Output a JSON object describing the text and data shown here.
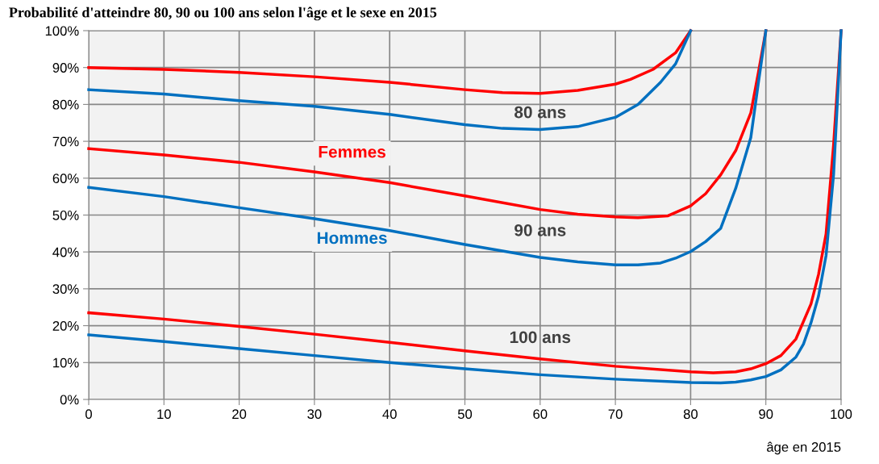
{
  "chart_data": {
    "type": "line",
    "title": "Probabilité d'atteindre 80, 90 ou 100 ans selon l'âge et le sexe en 2015",
    "xlabel": "âge en 2015",
    "xlim": [
      0,
      100
    ],
    "xticks": [
      0,
      10,
      20,
      30,
      40,
      50,
      60,
      70,
      80,
      90,
      100
    ],
    "ylim": [
      0,
      100
    ],
    "yticks": [
      {
        "value": 0,
        "label": "0%"
      },
      {
        "value": 10,
        "label": "10%"
      },
      {
        "value": 20,
        "label": "20%"
      },
      {
        "value": 30,
        "label": "30%"
      },
      {
        "value": 40,
        "label": "40%"
      },
      {
        "value": 50,
        "label": "50%"
      },
      {
        "value": 60,
        "label": "60%"
      },
      {
        "value": 70,
        "label": "70%"
      },
      {
        "value": 80,
        "label": "80%"
      },
      {
        "value": 90,
        "label": "90%"
      },
      {
        "value": 100,
        "label": "100%"
      }
    ],
    "grid": true,
    "legend": false,
    "marker": "none",
    "line_style": "solid",
    "series": [
      {
        "color": "#ff0000",
        "x": [
          0,
          10,
          20,
          30,
          40,
          50,
          55,
          60,
          65,
          70,
          72,
          75,
          78,
          80
        ],
        "values": [
          90,
          89.5,
          88.7,
          87.5,
          86,
          84,
          83.2,
          83,
          83.8,
          85.5,
          86.8,
          89.5,
          94,
          100
        ]
      },
      {
        "color": "#0070c0",
        "x": [
          0,
          10,
          20,
          30,
          40,
          50,
          55,
          60,
          65,
          70,
          73,
          76,
          78,
          80
        ],
        "values": [
          84,
          82.8,
          81,
          79.5,
          77.3,
          74.5,
          73.5,
          73.2,
          74,
          76.5,
          80,
          86,
          91,
          100
        ]
      },
      {
        "name": "Femmes",
        "color": "#ff0000",
        "x": [
          0,
          10,
          20,
          30,
          40,
          50,
          60,
          65,
          70,
          73,
          77,
          80,
          82,
          84,
          86,
          88,
          89,
          90
        ],
        "values": [
          68,
          66.3,
          64.3,
          61.7,
          58.8,
          55.2,
          51.5,
          50.2,
          49.5,
          49.3,
          49.8,
          52.5,
          55.8,
          60.9,
          67.5,
          77.7,
          88.6,
          100
        ]
      },
      {
        "name": "Hommes",
        "color": "#0070c0",
        "x": [
          0,
          10,
          20,
          30,
          40,
          50,
          60,
          65,
          70,
          73,
          76,
          78,
          80,
          82,
          84,
          86,
          88,
          89,
          90
        ],
        "values": [
          57.5,
          55,
          52,
          49,
          45.8,
          42,
          38.5,
          37.3,
          36.5,
          36.5,
          37,
          38.3,
          40.1,
          42.8,
          46.4,
          57.3,
          71,
          85.8,
          100
        ]
      },
      {
        "color": "#ff0000",
        "x": [
          0,
          10,
          20,
          30,
          40,
          50,
          60,
          70,
          80,
          83,
          86,
          88,
          90,
          92,
          94,
          96,
          97,
          98,
          99,
          100
        ],
        "values": [
          23.5,
          21.8,
          19.8,
          17.7,
          15.5,
          13.2,
          11,
          9,
          7.5,
          7.2,
          7.5,
          8.3,
          9.7,
          11.9,
          16.4,
          25.9,
          33.9,
          44.9,
          69,
          100
        ]
      },
      {
        "color": "#0070c0",
        "x": [
          0,
          10,
          20,
          30,
          40,
          50,
          60,
          70,
          80,
          84,
          86,
          88,
          90,
          92,
          94,
          95,
          96,
          97,
          98,
          99,
          100
        ],
        "values": [
          17.5,
          15.7,
          13.8,
          11.9,
          10,
          8.3,
          6.7,
          5.5,
          4.6,
          4.5,
          4.7,
          5.3,
          6.2,
          8,
          11.5,
          15,
          20.8,
          28,
          39,
          60.9,
          100
        ]
      }
    ],
    "annotations": [
      "80 ans",
      "90 ans",
      "100 ans"
    ]
  }
}
